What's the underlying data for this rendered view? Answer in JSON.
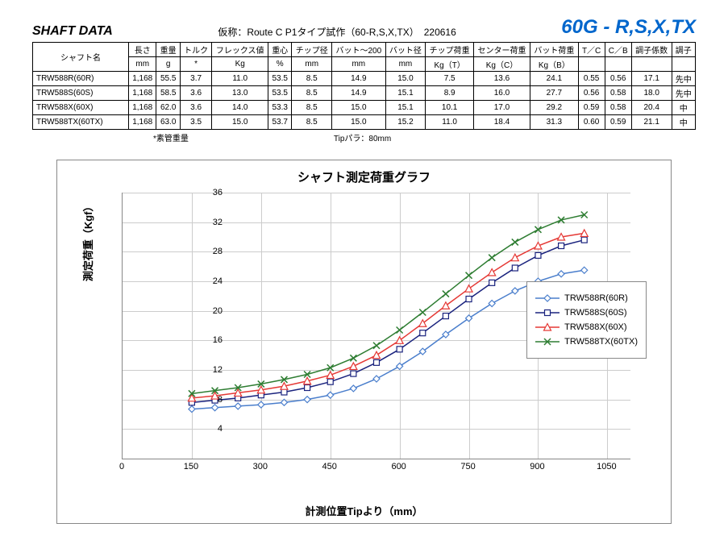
{
  "header": {
    "left": "SHAFT DATA",
    "center": "仮称：Route C P1タイプ試作（60-R,S,X,TX）　220616",
    "right": "60G - R,S,X,TX"
  },
  "table": {
    "shaft_name_header": "シャフト名",
    "header_row1": [
      "長さ",
      "重量",
      "トルク",
      "フレックス値",
      "重心",
      "チップ径",
      "バット～200",
      "バット径",
      "チップ荷重",
      "センター荷重",
      "バット荷重",
      "T／C",
      "C／B",
      "調子係数",
      "調子"
    ],
    "header_row2": [
      "mm",
      "g",
      "*",
      "Kg",
      "%",
      "mm",
      "mm",
      "mm",
      "Kg（T）",
      "Kg（C）",
      "Kg（B）",
      "",
      "",
      "",
      ""
    ],
    "rows": [
      {
        "name": "TRW588R(60R)",
        "vals": [
          "1,168",
          "55.5",
          "3.7",
          "11.0",
          "53.5",
          "8.5",
          "14.9",
          "15.0",
          "7.5",
          "13.6",
          "24.1",
          "0.55",
          "0.56",
          "17.1",
          "先中"
        ]
      },
      {
        "name": "TRW588S(60S)",
        "vals": [
          "1,168",
          "58.5",
          "3.6",
          "13.0",
          "53.5",
          "8.5",
          "14.9",
          "15.1",
          "8.9",
          "16.0",
          "27.7",
          "0.56",
          "0.58",
          "18.0",
          "先中"
        ]
      },
      {
        "name": "TRW588X(60X)",
        "vals": [
          "1,168",
          "62.0",
          "3.6",
          "14.0",
          "53.3",
          "8.5",
          "15.0",
          "15.1",
          "10.1",
          "17.0",
          "29.2",
          "0.59",
          "0.58",
          "20.4",
          "中"
        ]
      },
      {
        "name": "TRW588TX(60TX)",
        "vals": [
          "1,168",
          "63.0",
          "3.5",
          "15.0",
          "53.7",
          "8.5",
          "15.0",
          "15.2",
          "11.0",
          "18.4",
          "31.3",
          "0.60",
          "0.59",
          "21.1",
          "中"
        ]
      }
    ],
    "footnote_left": "*素管重量",
    "footnote_right": "Tipパラ：80mm"
  },
  "chart": {
    "title": "シャフト測定荷重グラフ",
    "ylabel": "測定荷重（Kgf）",
    "xlabel": "計測位置Tipより（mm）",
    "xlim": [
      0,
      1100
    ],
    "ylim": [
      0,
      36
    ],
    "xtick_step": 150,
    "ytick_step": 4,
    "grid_color": "#cccccc",
    "background_color": "#ffffff",
    "x_points": [
      150,
      200,
      250,
      300,
      350,
      400,
      450,
      500,
      550,
      600,
      650,
      700,
      750,
      800,
      850,
      900,
      950,
      1000
    ],
    "series": [
      {
        "name": "TRW588R(60R)",
        "color": "#4a7ecc",
        "marker": "diamond",
        "fill": "#ffffff",
        "y": [
          6.7,
          6.9,
          7.1,
          7.3,
          7.6,
          8.0,
          8.6,
          9.5,
          10.8,
          12.5,
          14.5,
          16.8,
          19.0,
          21.0,
          22.7,
          24.0,
          25.0,
          25.5
        ]
      },
      {
        "name": "TRW588S(60S)",
        "color": "#1a237e",
        "marker": "square",
        "fill": "#ffffff",
        "y": [
          7.6,
          7.9,
          8.2,
          8.6,
          9.0,
          9.6,
          10.4,
          11.5,
          13.0,
          14.8,
          17.0,
          19.3,
          21.6,
          23.8,
          25.8,
          27.5,
          28.8,
          29.6
        ]
      },
      {
        "name": "TRW588X(60X)",
        "color": "#e53935",
        "marker": "triangle",
        "fill": "#ffffff",
        "y": [
          8.2,
          8.5,
          8.9,
          9.3,
          9.8,
          10.5,
          11.3,
          12.5,
          14.0,
          16.0,
          18.3,
          20.7,
          23.0,
          25.2,
          27.2,
          28.8,
          30.0,
          30.5
        ]
      },
      {
        "name": "TRW588TX(60TX)",
        "color": "#2e7d32",
        "marker": "x",
        "fill": "none",
        "y": [
          8.8,
          9.2,
          9.6,
          10.1,
          10.7,
          11.4,
          12.3,
          13.6,
          15.3,
          17.4,
          19.8,
          22.3,
          24.8,
          27.2,
          29.3,
          31.0,
          32.3,
          33.0
        ]
      }
    ]
  }
}
